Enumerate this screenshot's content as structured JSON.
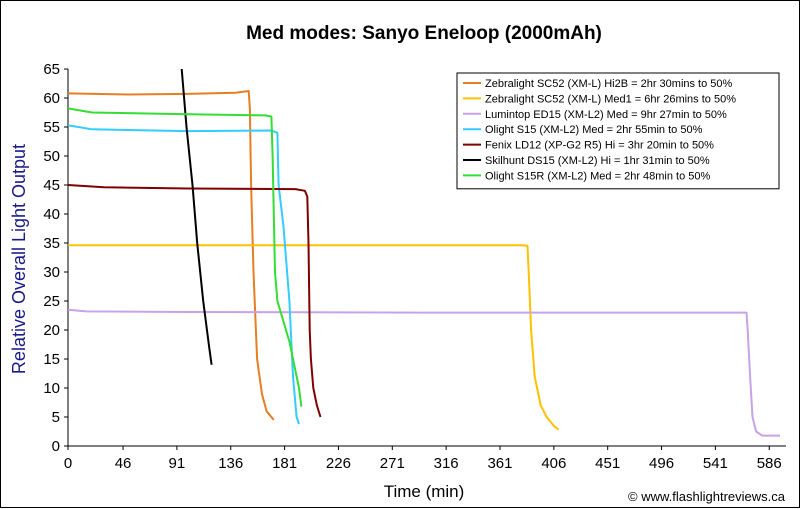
{
  "chart_data": {
    "type": "line",
    "title": "Med modes: Sanyo Eneloop (2000mAh)",
    "xlabel": "Time (min)",
    "ylabel": "Relative Overall Light Output",
    "xlim": [
      0,
      600
    ],
    "ylim": [
      0,
      65
    ],
    "xticks": [
      "0",
      "46",
      "91",
      "136",
      "181",
      "226",
      "271",
      "316",
      "361",
      "406",
      "451",
      "496",
      "541",
      "586"
    ],
    "yticks": [
      "0",
      "5",
      "10",
      "15",
      "20",
      "25",
      "30",
      "35",
      "40",
      "45",
      "50",
      "55",
      "60",
      "65"
    ],
    "grid": false,
    "legend_position": "top-right",
    "credit": "© www.flashlightreviews.ca",
    "series": [
      {
        "name": "Zebralight SC52 (XM-L) Hi2B = 2hr 30mins to 50%",
        "color": "#e67e22",
        "points": [
          [
            0,
            60.8
          ],
          [
            50,
            60.6
          ],
          [
            100,
            60.7
          ],
          [
            140,
            60.9
          ],
          [
            151,
            61.2
          ],
          [
            152,
            58
          ],
          [
            153,
            45
          ],
          [
            155,
            30
          ],
          [
            158,
            15
          ],
          [
            162,
            9
          ],
          [
            166,
            6
          ],
          [
            172,
            4.5
          ]
        ]
      },
      {
        "name": "Zebralight SC52 (XM-L) Med1 = 6hr 26mins to 50%",
        "color": "#ffc000",
        "points": [
          [
            0,
            34.6
          ],
          [
            100,
            34.6
          ],
          [
            200,
            34.6
          ],
          [
            300,
            34.6
          ],
          [
            380,
            34.6
          ],
          [
            384,
            34.5
          ],
          [
            385,
            30
          ],
          [
            387,
            20
          ],
          [
            390,
            12
          ],
          [
            395,
            7
          ],
          [
            400,
            5
          ],
          [
            406,
            3.5
          ],
          [
            410,
            2.8
          ]
        ]
      },
      {
        "name": "Lumintop ED15 (XM-L2) Med = 9hr 27min to 50%",
        "color": "#c8a2e8",
        "points": [
          [
            0,
            23.5
          ],
          [
            15,
            23.2
          ],
          [
            100,
            23.1
          ],
          [
            300,
            23.0
          ],
          [
            500,
            23.0
          ],
          [
            567,
            23.0
          ],
          [
            568,
            20
          ],
          [
            570,
            12
          ],
          [
            572,
            5
          ],
          [
            575,
            2.5
          ],
          [
            580,
            1.8
          ],
          [
            595,
            1.8
          ]
        ]
      },
      {
        "name": "Olight S15 (XM-L2) Med = 2hr 55min to 50%",
        "color": "#33ccff",
        "points": [
          [
            0,
            55.3
          ],
          [
            20,
            54.6
          ],
          [
            100,
            54.3
          ],
          [
            170,
            54.4
          ],
          [
            175,
            54
          ],
          [
            176,
            45
          ],
          [
            180,
            38
          ],
          [
            185,
            25
          ],
          [
            188,
            12
          ],
          [
            191,
            5
          ],
          [
            193,
            3.8
          ]
        ]
      },
      {
        "name": "Fenix LD12 (XP-G2 R5) Hi = 3hr 20min to 50%",
        "color": "#800000",
        "points": [
          [
            0,
            45
          ],
          [
            30,
            44.6
          ],
          [
            100,
            44.4
          ],
          [
            190,
            44.3
          ],
          [
            198,
            44
          ],
          [
            200,
            43
          ],
          [
            201,
            35
          ],
          [
            202,
            20
          ],
          [
            203,
            15
          ],
          [
            205,
            10
          ],
          [
            208,
            7
          ],
          [
            211,
            5
          ]
        ]
      },
      {
        "name": "Skilhunt DS15 (XM-L2) Hi = 1hr 31min to 50%",
        "color": "#000000",
        "points": [
          [
            95,
            65
          ],
          [
            99,
            55
          ],
          [
            104,
            45
          ],
          [
            108,
            35
          ],
          [
            113,
            25
          ],
          [
            118,
            17
          ],
          [
            120,
            14
          ]
        ]
      },
      {
        "name": "Olight S15R (XM-L2) Med = 2hr 48min to 50%",
        "color": "#33dd33",
        "points": [
          [
            0,
            58.2
          ],
          [
            20,
            57.5
          ],
          [
            100,
            57.2
          ],
          [
            165,
            57.0
          ],
          [
            170,
            56.8
          ],
          [
            171,
            50
          ],
          [
            172,
            40
          ],
          [
            173,
            30
          ],
          [
            175,
            25
          ],
          [
            185,
            18
          ],
          [
            193,
            10
          ],
          [
            195,
            6.8
          ]
        ]
      }
    ]
  }
}
